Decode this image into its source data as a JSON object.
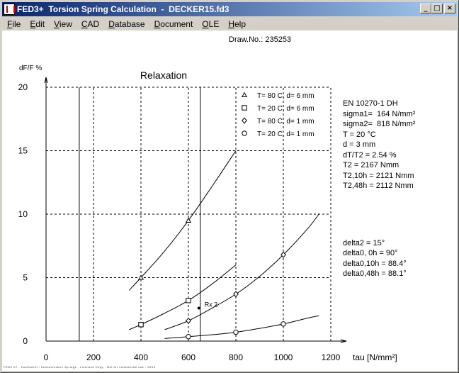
{
  "window": {
    "title": "FED3+  Torsion Spring Calculation  -  DECKER15.fd3",
    "minimize": "_",
    "maximize": "□",
    "close": "×"
  },
  "menu": [
    {
      "label": "File",
      "accel": "F",
      "rest": "ile"
    },
    {
      "label": "Edit",
      "accel": "E",
      "rest": "dit"
    },
    {
      "label": "View",
      "accel": "V",
      "rest": "iew"
    },
    {
      "label": "CAD",
      "accel": "C",
      "rest": "AD"
    },
    {
      "label": "Database",
      "accel": "D",
      "rest": "atabase"
    },
    {
      "label": "Document",
      "accel": "D",
      "rest": "ocument"
    },
    {
      "label": "OLE",
      "accel": "O",
      "rest": "LE"
    },
    {
      "label": "Help",
      "accel": "H",
      "rest": "elp"
    }
  ],
  "drawing": {
    "draw_no": "Draw.No.: 235253"
  },
  "info": {
    "lines": [
      "EN 10270-1 DH",
      "sigma1=  164 N/mm²",
      "sigma2=  818 N/mm²",
      "T = 20 °C",
      "d = 3 mm",
      "dT/T2 = 2.54 %",
      "T2 = 2167 Nmm",
      "T2,10h = 2121 Nmm",
      "T2,48h = 2112 Nmm"
    ],
    "lines2": [
      "delta2 = 15°",
      "delta0, 0h = 90°",
      "delta0,10h = 88.4°",
      "delta0,48h = 88.1°"
    ]
  },
  "footer": "FED3 V7 - Hochschul / Heuschrecken Springs - Licensed Copy - Not for commercial use - 2003",
  "chart_data": {
    "type": "line",
    "title": "Relaxation",
    "xlabel": "tau [N/mm²]",
    "ylabel": "dF/F %",
    "xlim": [
      0,
      1200
    ],
    "ylim": [
      0,
      20
    ],
    "x_ticks": [
      0,
      200,
      400,
      600,
      800,
      1000,
      1200
    ],
    "y_ticks": [
      0,
      5,
      10,
      15,
      20
    ],
    "grid": "dashed",
    "legend_position": "top-right",
    "vertical_lines": [
      140,
      650
    ],
    "annotation": {
      "text": "Rx 2",
      "x": 650,
      "y": 2.6
    },
    "series": [
      {
        "name": "T= 80 C,  d= 6 mm",
        "marker": "triangle",
        "markers": [
          {
            "x": 400,
            "y": 5.0
          },
          {
            "x": 600,
            "y": 9.5
          }
        ],
        "curve": [
          [
            350,
            4.0
          ],
          [
            400,
            5.0
          ],
          [
            500,
            7.1
          ],
          [
            600,
            9.5
          ],
          [
            700,
            12.2
          ],
          [
            800,
            15.0
          ]
        ]
      },
      {
        "name": "T= 20 C,  d= 6 mm",
        "marker": "square",
        "markers": [
          {
            "x": 400,
            "y": 1.3
          },
          {
            "x": 600,
            "y": 3.2
          }
        ],
        "curve": [
          [
            350,
            0.9
          ],
          [
            400,
            1.3
          ],
          [
            500,
            2.2
          ],
          [
            600,
            3.2
          ],
          [
            700,
            4.5
          ],
          [
            800,
            6.0
          ]
        ]
      },
      {
        "name": "T= 80 C,  d= 1 mm",
        "marker": "diamond",
        "markers": [
          {
            "x": 600,
            "y": 1.6
          },
          {
            "x": 800,
            "y": 3.7
          },
          {
            "x": 1000,
            "y": 6.8
          }
        ],
        "curve": [
          [
            500,
            0.9
          ],
          [
            600,
            1.6
          ],
          [
            700,
            2.6
          ],
          [
            800,
            3.7
          ],
          [
            900,
            5.1
          ],
          [
            1000,
            6.8
          ],
          [
            1100,
            8.8
          ],
          [
            1150,
            10.0
          ]
        ]
      },
      {
        "name": "T= 20 C,  d= 1 mm",
        "marker": "circle",
        "markers": [
          {
            "x": 600,
            "y": 0.35
          },
          {
            "x": 800,
            "y": 0.7
          },
          {
            "x": 1000,
            "y": 1.35
          }
        ],
        "curve": [
          [
            500,
            0.2
          ],
          [
            600,
            0.35
          ],
          [
            700,
            0.5
          ],
          [
            800,
            0.7
          ],
          [
            900,
            1.0
          ],
          [
            1000,
            1.35
          ],
          [
            1100,
            1.8
          ],
          [
            1150,
            2.0
          ]
        ]
      }
    ]
  }
}
